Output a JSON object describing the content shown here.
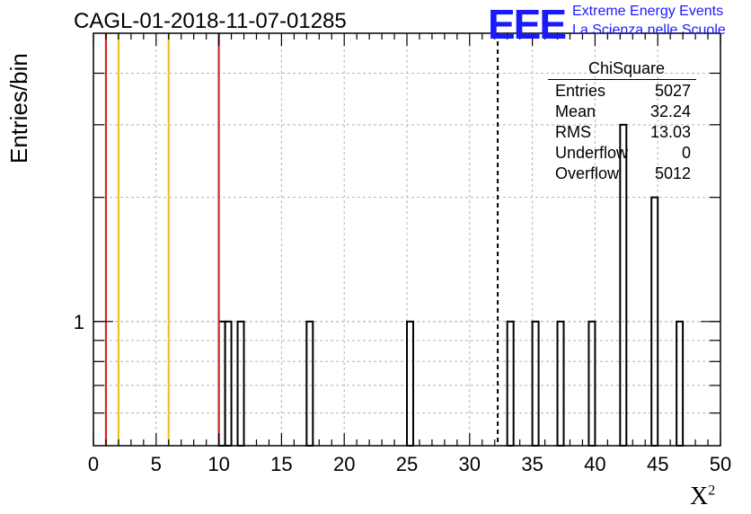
{
  "header": {
    "title": "CAGL-01-2018-11-07-01285",
    "logo": "EEE",
    "logo_line1": "Extreme Energy Events",
    "logo_line2": "La Scienza nelle Scuole",
    "brand_color": "#1a1aff"
  },
  "stats": {
    "title": "ChiSquare",
    "rows": [
      {
        "label": "Entries",
        "value": "5027"
      },
      {
        "label": "Mean",
        "value": "32.24"
      },
      {
        "label": "RMS",
        "value": "13.03"
      },
      {
        "label": "Underflow",
        "value": "0"
      },
      {
        "label": "Overflow",
        "value": "5012"
      }
    ]
  },
  "chart_data": {
    "type": "bar",
    "xlabel": "X",
    "xlabel_sup": "2",
    "ylabel": "Entries/bin",
    "xlim": [
      0,
      50
    ],
    "ylim": [
      0.5,
      5
    ],
    "yscale": "log",
    "grid": true,
    "x_ticks": [
      0,
      5,
      10,
      15,
      20,
      25,
      30,
      35,
      40,
      45,
      50
    ],
    "y_tick_labels": [
      {
        "value": 1,
        "label": "1"
      }
    ],
    "bin_width": 0.5,
    "bins": [
      {
        "x": 10.0,
        "value": 1
      },
      {
        "x": 10.5,
        "value": 1
      },
      {
        "x": 11.5,
        "value": 1
      },
      {
        "x": 17.0,
        "value": 1
      },
      {
        "x": 25.0,
        "value": 1
      },
      {
        "x": 33.0,
        "value": 1
      },
      {
        "x": 35.0,
        "value": 1
      },
      {
        "x": 37.0,
        "value": 1
      },
      {
        "x": 39.5,
        "value": 1
      },
      {
        "x": 42.0,
        "value": 3
      },
      {
        "x": 44.5,
        "value": 2
      },
      {
        "x": 46.5,
        "value": 1
      }
    ],
    "reference_lines": [
      {
        "x": 1,
        "color": "#d62728"
      },
      {
        "x": 2,
        "color": "#f0c020"
      },
      {
        "x": 6,
        "color": "#f0c020"
      },
      {
        "x": 10,
        "color": "#d62728"
      }
    ],
    "mean_line": {
      "x": 32.24,
      "style": "dashed",
      "color": "#000000"
    }
  }
}
